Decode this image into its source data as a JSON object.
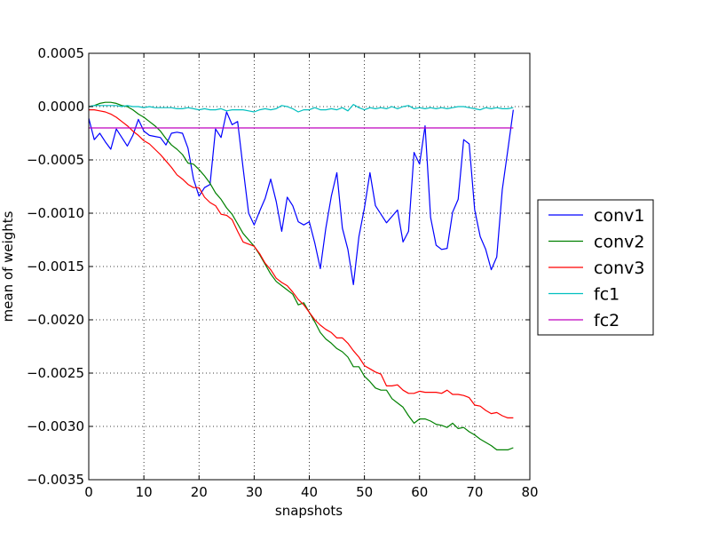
{
  "chart_data": {
    "type": "line",
    "xlabel": "snapshots",
    "ylabel": "mean of weights",
    "xlim": [
      0,
      80
    ],
    "ylim": [
      -0.0035,
      0.0005
    ],
    "xticks": [
      0,
      10,
      20,
      30,
      40,
      50,
      60,
      70,
      80
    ],
    "xtick_labels": [
      "0",
      "10",
      "20",
      "30",
      "40",
      "50",
      "60",
      "70",
      "80"
    ],
    "yticks": [
      0.0005,
      0.0,
      -0.0005,
      -0.001,
      -0.0015,
      -0.002,
      -0.0025,
      -0.003,
      -0.0035
    ],
    "ytick_labels": [
      "0.0005",
      "0.0000",
      "−0.0005",
      "−0.0010",
      "−0.0015",
      "−0.0020",
      "−0.0025",
      "−0.0030",
      "−0.0035"
    ],
    "grid": true,
    "legend_position": "right, outside plot",
    "series": [
      {
        "name": "conv1",
        "color": "#0000ff",
        "x": [
          0,
          1,
          2,
          3,
          4,
          5,
          6,
          7,
          8,
          9,
          10,
          11,
          12,
          13,
          14,
          15,
          16,
          17,
          18,
          19,
          20,
          21,
          22,
          23,
          24,
          25,
          26,
          27,
          28,
          29,
          30,
          31,
          32,
          33,
          34,
          35,
          36,
          37,
          38,
          39,
          40,
          41,
          42,
          43,
          44,
          45,
          46,
          47,
          48,
          49,
          50,
          51,
          52,
          53,
          54,
          55,
          56,
          57,
          58,
          59,
          60,
          61,
          62,
          63,
          64,
          65,
          66,
          67,
          68,
          69,
          70,
          71,
          72,
          73,
          74,
          75,
          76,
          77
        ],
        "y": [
          -0.00011,
          -0.00031,
          -0.00025,
          -0.00033,
          -0.0004,
          -0.00021,
          -0.00029,
          -0.00037,
          -0.00027,
          -0.00012,
          -0.00023,
          -0.00027,
          -0.00028,
          -0.00029,
          -0.00036,
          -0.00025,
          -0.00024,
          -0.00025,
          -0.00039,
          -0.00068,
          -0.00084,
          -0.00076,
          -0.00073,
          -0.00021,
          -0.00029,
          -5e-05,
          -0.00017,
          -0.00014,
          -0.00058,
          -0.001,
          -0.00111,
          -0.00098,
          -0.00086,
          -0.00068,
          -0.00089,
          -0.00117,
          -0.00085,
          -0.00093,
          -0.00108,
          -0.00111,
          -0.00108,
          -0.00128,
          -0.00152,
          -0.00114,
          -0.00084,
          -0.00062,
          -0.00114,
          -0.00134,
          -0.00167,
          -0.00122,
          -0.00095,
          -0.00062,
          -0.00093,
          -0.00101,
          -0.00109,
          -0.00103,
          -0.00097,
          -0.00127,
          -0.00117,
          -0.00043,
          -0.00054,
          -0.00018,
          -0.00104,
          -0.0013,
          -0.00134,
          -0.00133,
          -0.00099,
          -0.00087,
          -0.00031,
          -0.00035,
          -0.00097,
          -0.00122,
          -0.00134,
          -0.00153,
          -0.00141,
          -0.00078,
          -0.00041,
          -3e-05
        ]
      },
      {
        "name": "conv2",
        "color": "#008000",
        "x": [
          0,
          1,
          2,
          3,
          4,
          5,
          6,
          7,
          8,
          9,
          10,
          11,
          12,
          13,
          14,
          15,
          16,
          17,
          18,
          19,
          20,
          21,
          22,
          23,
          24,
          25,
          26,
          27,
          28,
          29,
          30,
          31,
          32,
          33,
          34,
          35,
          36,
          37,
          38,
          39,
          40,
          41,
          42,
          43,
          44,
          45,
          46,
          47,
          48,
          49,
          50,
          51,
          52,
          53,
          54,
          55,
          56,
          57,
          58,
          59,
          60,
          61,
          62,
          63,
          64,
          65,
          66,
          67,
          68,
          69,
          70,
          71,
          72,
          73,
          74,
          75,
          76,
          77
        ],
        "y": [
          0.0,
          1e-05,
          3e-05,
          4e-05,
          4e-05,
          3e-05,
          1e-05,
          0.0,
          -3e-05,
          -7e-05,
          -0.0001,
          -0.00014,
          -0.00018,
          -0.00023,
          -0.0003,
          -0.00036,
          -0.0004,
          -0.00045,
          -0.00053,
          -0.00054,
          -0.00059,
          -0.00065,
          -0.00072,
          -0.00081,
          -0.00087,
          -0.00095,
          -0.00101,
          -0.0011,
          -0.00119,
          -0.00125,
          -0.00131,
          -0.00139,
          -0.00148,
          -0.00157,
          -0.00164,
          -0.00168,
          -0.00172,
          -0.00176,
          -0.00186,
          -0.00184,
          -0.00193,
          -0.00202,
          -0.00212,
          -0.00218,
          -0.00222,
          -0.00227,
          -0.0023,
          -0.00235,
          -0.00244,
          -0.00244,
          -0.00253,
          -0.00258,
          -0.00264,
          -0.00266,
          -0.00266,
          -0.00274,
          -0.00278,
          -0.00282,
          -0.0029,
          -0.00297,
          -0.00293,
          -0.00293,
          -0.00295,
          -0.00298,
          -0.00299,
          -0.00301,
          -0.00297,
          -0.00302,
          -0.00301,
          -0.00305,
          -0.00308,
          -0.00312,
          -0.00315,
          -0.00318,
          -0.00322,
          -0.00322,
          -0.00322,
          -0.0032
        ]
      },
      {
        "name": "conv3",
        "color": "#ff0000",
        "x": [
          0,
          1,
          2,
          3,
          4,
          5,
          6,
          7,
          8,
          9,
          10,
          11,
          12,
          13,
          14,
          15,
          16,
          17,
          18,
          19,
          20,
          21,
          22,
          23,
          24,
          25,
          26,
          27,
          28,
          29,
          30,
          31,
          32,
          33,
          34,
          35,
          36,
          37,
          38,
          39,
          40,
          41,
          42,
          43,
          44,
          45,
          46,
          47,
          48,
          49,
          50,
          51,
          52,
          53,
          54,
          55,
          56,
          57,
          58,
          59,
          60,
          61,
          62,
          63,
          64,
          65,
          66,
          67,
          68,
          69,
          70,
          71,
          72,
          73,
          74,
          75,
          76,
          77
        ],
        "y": [
          -3e-05,
          -3e-05,
          -4e-05,
          -5e-05,
          -7e-05,
          -0.0001,
          -0.00014,
          -0.00018,
          -0.00023,
          -0.00027,
          -0.00032,
          -0.00035,
          -0.0004,
          -0.00045,
          -0.00051,
          -0.00057,
          -0.00064,
          -0.00068,
          -0.00073,
          -0.00076,
          -0.00076,
          -0.00085,
          -0.0009,
          -0.00093,
          -0.00101,
          -0.00102,
          -0.00106,
          -0.00117,
          -0.00127,
          -0.00129,
          -0.00131,
          -0.00138,
          -0.00147,
          -0.00153,
          -0.00161,
          -0.00165,
          -0.00168,
          -0.00174,
          -0.00181,
          -0.00186,
          -0.00193,
          -0.002,
          -0.00205,
          -0.00209,
          -0.00212,
          -0.00217,
          -0.00217,
          -0.00222,
          -0.00229,
          -0.00235,
          -0.00243,
          -0.00246,
          -0.00249,
          -0.00251,
          -0.00262,
          -0.00262,
          -0.00261,
          -0.00266,
          -0.00269,
          -0.00269,
          -0.00267,
          -0.00268,
          -0.00268,
          -0.00268,
          -0.00269,
          -0.00266,
          -0.0027,
          -0.0027,
          -0.00271,
          -0.00273,
          -0.0028,
          -0.00281,
          -0.00285,
          -0.00288,
          -0.00287,
          -0.0029,
          -0.00292,
          -0.00292
        ]
      },
      {
        "name": "fc1",
        "color": "#00bfbf",
        "x": [
          0,
          1,
          2,
          3,
          4,
          5,
          6,
          7,
          8,
          9,
          10,
          11,
          12,
          13,
          14,
          15,
          16,
          17,
          18,
          19,
          20,
          21,
          22,
          23,
          24,
          25,
          26,
          27,
          28,
          29,
          30,
          31,
          32,
          33,
          34,
          35,
          36,
          37,
          38,
          39,
          40,
          41,
          42,
          43,
          44,
          45,
          46,
          47,
          48,
          49,
          50,
          51,
          52,
          53,
          54,
          55,
          56,
          57,
          58,
          59,
          60,
          61,
          62,
          63,
          64,
          65,
          66,
          67,
          68,
          69,
          70,
          71,
          72,
          73,
          74,
          75,
          76,
          77
        ],
        "y": [
          0.0,
          1e-05,
          1e-05,
          1e-05,
          1e-05,
          1e-05,
          0.0,
          1e-05,
          0.0,
          0.0,
          -1e-05,
          0.0,
          -1e-05,
          -1e-05,
          -1e-05,
          -1e-05,
          -2e-05,
          -2e-05,
          -1e-05,
          -2e-05,
          -3e-05,
          -2e-05,
          -3e-05,
          -3e-05,
          -2e-05,
          -4e-05,
          -3e-05,
          -3e-05,
          -3e-05,
          -4e-05,
          -5e-05,
          -3e-05,
          -2e-05,
          -3e-05,
          -2e-05,
          1e-05,
          0.0,
          -2e-05,
          -5e-05,
          -3e-05,
          -3e-05,
          -1e-05,
          -3e-05,
          -3e-05,
          -2e-05,
          -3e-05,
          -1e-05,
          -4e-05,
          2e-05,
          -1e-05,
          -3e-05,
          -1e-05,
          -2e-05,
          -1e-05,
          -2e-05,
          0.0,
          -2e-05,
          0.0,
          1e-05,
          -2e-05,
          -1e-05,
          -2e-05,
          -1e-05,
          -2e-05,
          -1e-05,
          -2e-05,
          -1e-05,
          0.0,
          0.0,
          -1e-05,
          -2e-05,
          -3e-05,
          -1e-05,
          -2e-05,
          -1e-05,
          -2e-05,
          -2e-05,
          -1e-05
        ]
      },
      {
        "name": "fc2",
        "color": "#bf00bf",
        "x": [
          0,
          77
        ],
        "y": [
          -0.0002,
          -0.0002
        ]
      }
    ]
  }
}
